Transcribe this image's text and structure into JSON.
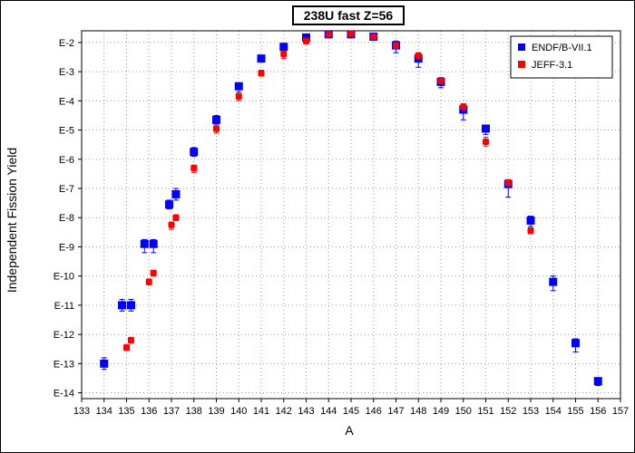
{
  "chart_data": {
    "type": "scatter",
    "title": "238U fast Z=56",
    "xlabel": "A",
    "ylabel": "Independent Fission Yield",
    "xlim": [
      133,
      157
    ],
    "ylim": [
      -14.2,
      -1.6
    ],
    "y_scale": "log",
    "grid": true,
    "legend_position": "top-right",
    "x_ticks": [
      "133",
      "134",
      "135",
      "136",
      "137",
      "138",
      "139",
      "140",
      "141",
      "142",
      "143",
      "144",
      "145",
      "146",
      "147",
      "148",
      "149",
      "150",
      "151",
      "152",
      "153",
      "154",
      "155",
      "156",
      "157"
    ],
    "y_ticks": [
      {
        "value": -2,
        "label": "E-2"
      },
      {
        "value": -3,
        "label": "E-3"
      },
      {
        "value": -4,
        "label": "E-4"
      },
      {
        "value": -5,
        "label": "E-5"
      },
      {
        "value": -6,
        "label": "E-6"
      },
      {
        "value": -7,
        "label": "E-7"
      },
      {
        "value": -8,
        "label": "E-8"
      },
      {
        "value": -9,
        "label": "E-9"
      },
      {
        "value": -10,
        "label": "E-10"
      },
      {
        "value": -11,
        "label": "E-11"
      },
      {
        "value": -12,
        "label": "E-12"
      },
      {
        "value": -13,
        "label": "E-13"
      },
      {
        "value": -14,
        "label": "E-14"
      }
    ],
    "series": [
      {
        "name": "ENDF/B-VII.1",
        "color": "#0000ff",
        "marker": "square",
        "points": [
          {
            "x": 134,
            "y": -13.0,
            "lo": -13.2,
            "hi": -12.8
          },
          {
            "x": 134.8,
            "y": -11.0,
            "lo": -11.2,
            "hi": -10.8
          },
          {
            "x": 135.2,
            "y": -11.0,
            "lo": -11.2,
            "hi": -10.8
          },
          {
            "x": 135.8,
            "y": -8.9,
            "lo": -9.2,
            "hi": -8.75
          },
          {
            "x": 136.2,
            "y": -8.9,
            "lo": -9.2,
            "hi": -8.75
          },
          {
            "x": 136.9,
            "y": -7.55,
            "lo": -7.7,
            "hi": -7.4
          },
          {
            "x": 137.2,
            "y": -7.2,
            "lo": -7.4,
            "hi": -7.0
          },
          {
            "x": 138,
            "y": -5.75,
            "lo": -5.9,
            "hi": -5.6
          },
          {
            "x": 139,
            "y": -4.65,
            "lo": -4.8,
            "hi": -4.5
          },
          {
            "x": 140,
            "y": -3.5,
            "lo": -3.7,
            "hi": -3.4
          },
          {
            "x": 141,
            "y": -2.55,
            "lo": -2.65,
            "hi": -2.45
          },
          {
            "x": 142,
            "y": -2.15,
            "lo": -2.25,
            "hi": -2.05
          },
          {
            "x": 143,
            "y": -1.83,
            "lo": -1.9,
            "hi": -1.76
          },
          {
            "x": 144,
            "y": -1.72,
            "lo": -1.78,
            "hi": -1.66
          },
          {
            "x": 145,
            "y": -1.72,
            "lo": -1.78,
            "hi": -1.66
          },
          {
            "x": 146,
            "y": -1.8,
            "lo": -1.87,
            "hi": -1.73
          },
          {
            "x": 147,
            "y": -2.1,
            "lo": -2.35,
            "hi": -1.95
          },
          {
            "x": 148,
            "y": -2.55,
            "lo": -2.85,
            "hi": -2.45
          },
          {
            "x": 149,
            "y": -3.35,
            "lo": -3.55,
            "hi": -3.2
          },
          {
            "x": 150,
            "y": -4.3,
            "lo": -4.65,
            "hi": -4.15
          },
          {
            "x": 151,
            "y": -4.95,
            "lo": -5.15,
            "hi": -4.85
          },
          {
            "x": 152,
            "y": -6.85,
            "lo": -7.3,
            "hi": -6.7
          },
          {
            "x": 153,
            "y": -8.1,
            "lo": -8.3,
            "hi": -7.95
          },
          {
            "x": 154,
            "y": -10.2,
            "lo": -10.5,
            "hi": -10.0
          },
          {
            "x": 155,
            "y": -12.3,
            "lo": -12.6,
            "hi": -12.15
          },
          {
            "x": 156,
            "y": -13.6,
            "lo": -13.75,
            "hi": -13.5
          }
        ]
      },
      {
        "name": "JEFF-3.1",
        "color": "#ff0000",
        "marker": "square",
        "points": [
          {
            "x": 135,
            "y": -12.45,
            "lo": -12.55,
            "hi": -12.35
          },
          {
            "x": 135.2,
            "y": -12.2,
            "lo": -12.3,
            "hi": -12.1
          },
          {
            "x": 136,
            "y": -10.2,
            "lo": -10.3,
            "hi": -10.1
          },
          {
            "x": 136.2,
            "y": -9.9,
            "lo": -10.0,
            "hi": -9.8
          },
          {
            "x": 137,
            "y": -8.25,
            "lo": -8.4,
            "hi": -8.15
          },
          {
            "x": 137.2,
            "y": -8.0,
            "lo": -8.1,
            "hi": -7.9
          },
          {
            "x": 138,
            "y": -6.3,
            "lo": -6.45,
            "hi": -6.2
          },
          {
            "x": 139,
            "y": -4.95,
            "lo": -5.1,
            "hi": -4.85
          },
          {
            "x": 140,
            "y": -3.85,
            "lo": -4.0,
            "hi": -3.75
          },
          {
            "x": 141,
            "y": -3.05,
            "lo": -3.15,
            "hi": -2.95
          },
          {
            "x": 142,
            "y": -2.4,
            "lo": -2.55,
            "hi": -2.3
          },
          {
            "x": 143,
            "y": -1.95,
            "lo": -2.05,
            "hi": -1.85
          },
          {
            "x": 144,
            "y": -1.72,
            "lo": -1.78,
            "hi": -1.66
          },
          {
            "x": 145,
            "y": -1.7,
            "lo": -1.76,
            "hi": -1.64
          },
          {
            "x": 146,
            "y": -1.8,
            "lo": -1.87,
            "hi": -1.73
          },
          {
            "x": 147,
            "y": -2.1,
            "lo": -2.2,
            "hi": -2.0
          },
          {
            "x": 148,
            "y": -2.45,
            "lo": -2.55,
            "hi": -2.35
          },
          {
            "x": 149,
            "y": -3.3,
            "lo": -3.4,
            "hi": -3.2
          },
          {
            "x": 150,
            "y": -4.2,
            "lo": -4.3,
            "hi": -4.1
          },
          {
            "x": 151,
            "y": -5.4,
            "lo": -5.55,
            "hi": -5.25
          },
          {
            "x": 152,
            "y": -6.8,
            "lo": -6.9,
            "hi": -6.7
          },
          {
            "x": 153,
            "y": -8.45,
            "lo": -8.55,
            "hi": -8.35
          }
        ]
      }
    ]
  }
}
